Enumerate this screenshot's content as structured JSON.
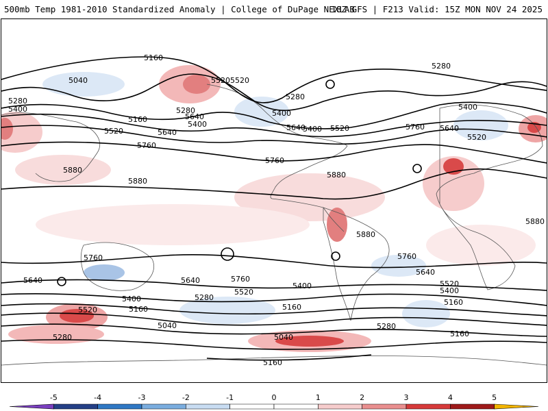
{
  "header": {
    "title": "500mb Temp 1981-2010 Standardized Anomaly | College of DuPage NEXLAB",
    "run_info": "18Z GFS | F213 Valid: 15Z MON NOV 24 2025"
  },
  "map": {
    "contour_labels": [
      "5160",
      "5040",
      "5520",
      "5280",
      "5400",
      "5280",
      "5160",
      "5400",
      "5520",
      "5640",
      "5760",
      "5880",
      "5880",
      "5520",
      "5400",
      "5280",
      "5640",
      "5520",
      "5400",
      "5280",
      "5760",
      "5880",
      "5880",
      "5760",
      "5640",
      "5400",
      "5520",
      "5280",
      "5400",
      "5640",
      "5760",
      "5760",
      "5640",
      "5520",
      "5400",
      "5160",
      "5040",
      "5280",
      "5160",
      "5040",
      "5160",
      "5160",
      "5280",
      "5520",
      "5640",
      "5760",
      "5880",
      "5640",
      "5520",
      "5400",
      "5160"
    ],
    "anomaly_colors": {
      "neg_strong": "#6a7fbf",
      "neg_mid": "#a9c4e6",
      "neg_light": "#dce8f6",
      "pos_light": "#f8dcdc",
      "pos_mid": "#eea5a5",
      "pos_strong": "#d94a4a"
    }
  },
  "colorbar": {
    "ticks": [
      "-5",
      "-4",
      "-3",
      "-2",
      "-1",
      "0",
      "1",
      "2",
      "3",
      "4",
      "5"
    ],
    "segments": [
      "#7a3fbf",
      "#243f86",
      "#2f78c4",
      "#7aaddf",
      "#c8dcf2",
      "#ffffff",
      "#ffffff",
      "#f6cccc",
      "#e98f8f",
      "#d63a3a",
      "#9e1a1a",
      "#f2b400"
    ]
  }
}
